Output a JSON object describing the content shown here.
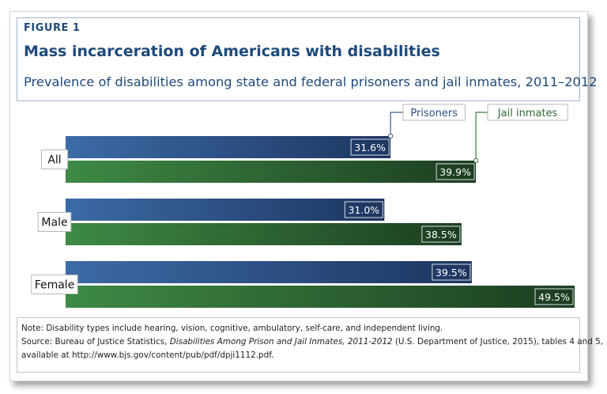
{
  "figure": {
    "label": "FIGURE 1",
    "title": "Mass incarceration of Americans with disabilities",
    "subtitle": "Prevalence of disabilities among state and federal prisoners and jail inmates, 2011–2012"
  },
  "chart_data": {
    "type": "bar",
    "orientation": "horizontal",
    "categories": [
      "All",
      "Male",
      "Female"
    ],
    "series": [
      {
        "name": "Prisoners",
        "values": [
          31.6,
          31.0,
          39.5
        ],
        "labels": [
          "31.6%",
          "31.0%",
          "39.5%"
        ]
      },
      {
        "name": "Jail inmates",
        "values": [
          39.9,
          38.5,
          49.5
        ],
        "labels": [
          "39.9%",
          "38.5%",
          "49.5%"
        ]
      }
    ],
    "xlim": [
      0,
      49.5
    ],
    "legend": "callouts above top bars",
    "grid": false,
    "colors": {
      "prisoners": "#2a4f84",
      "jail_inmates": "#2f6a35"
    }
  },
  "notes": {
    "note": "Note: Disability types include hearing, vision, cognitive, ambulatory, self-care, and independent living.",
    "source_prefix": "Source: Bureau of Justice Statistics, ",
    "source_title": "Disabilities Among Prison and Jail Inmates, 2011-2012",
    "source_suffix": " (U.S. Department of Justice, 2015), tables 4 and 5,",
    "source_line2": "available at http://www.bjs.gov/content/pub/pdf/dpji1112.pdf."
  }
}
